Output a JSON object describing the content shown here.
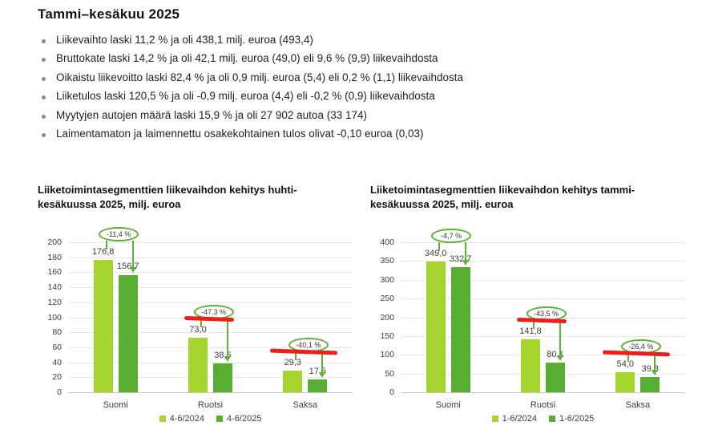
{
  "header": {
    "title": "Tammi–kesäkuu 2025"
  },
  "bullets": [
    "Liikevaihto laski 11,2 % ja oli 438,1 milj. euroa (493,4)",
    "Bruttokate laski 14,2 % ja oli 42,1 milj. euroa (49,0) eli 9,6 % (9,9) liikevaihdosta",
    "Oikaistu liikevoitto laski 82,4 % ja oli 0,9 milj. euroa (5,4) eli 0,2 % (1,1) liikevaihdosta",
    "Liiketulos laski 120,5 % ja oli -0,9 milj. euroa (4,4) eli -0,2 % (0,9) liikevaihdosta",
    "Myytyjen autojen määrä laski 15,9 % ja oli 27 902 autoa (33 174)",
    "Laimentamaton ja laimennettu osakekohtainen tulos olivat -0,10 euroa (0,03)"
  ],
  "colors": {
    "series1": "#a6d42e",
    "series2": "#57ae32",
    "annotation_green": "#5cb231",
    "red_marker": "#e8211d",
    "gridline": "#e6e6e6",
    "text_dark": "#111111",
    "text_label": "#3d3d3d"
  },
  "chart_data": [
    {
      "type": "bar",
      "title_lines": [
        "Liiketoimintasegmenttien liikevaihdon kehitys huhti-",
        "kesäkuussa 2025, milj. euroa"
      ],
      "categories": [
        "Suomi",
        "Ruotsi",
        "Saksa"
      ],
      "series": [
        {
          "name": "4-6/2024",
          "values": [
            176.8,
            73.0,
            29.3
          ],
          "labels": [
            "176,8",
            "73,0",
            "29,3"
          ]
        },
        {
          "name": "4-6/2025",
          "values": [
            156.7,
            38.5,
            17.5
          ],
          "labels": [
            "156,7",
            "38,5",
            "17,5"
          ]
        }
      ],
      "annotations": [
        {
          "category": "Suomi",
          "text": "-11,4 %",
          "red_line": false
        },
        {
          "category": "Ruotsi",
          "text": "-47,3 %",
          "red_line": true
        },
        {
          "category": "Saksa",
          "text": "-40,1 %",
          "red_line": true
        }
      ],
      "ylim": [
        0,
        200
      ],
      "ytick_step": 20,
      "grid": true,
      "legend_position": "bottom"
    },
    {
      "type": "bar",
      "title_lines": [
        "Liiketoimintasegmenttien liikevaihdon kehitys tammi-",
        "kesäkuussa 2025, milj. euroa"
      ],
      "categories": [
        "Suomi",
        "Ruotsi",
        "Saksa"
      ],
      "series": [
        {
          "name": "1-6/2024",
          "values": [
            349.0,
            141.8,
            54.0
          ],
          "labels": [
            "349,0",
            "141,8",
            "54,0"
          ]
        },
        {
          "name": "1-6/2025",
          "values": [
            332.7,
            80.1,
            39.8
          ],
          "labels": [
            "332,7",
            "80,1",
            "39,8"
          ]
        }
      ],
      "annotations": [
        {
          "category": "Suomi",
          "text": "-4,7 %",
          "red_line": false
        },
        {
          "category": "Ruotsi",
          "text": "-43,5 %",
          "red_line": true
        },
        {
          "category": "Saksa",
          "text": "-26,4 %",
          "red_line": true
        }
      ],
      "ylim": [
        0,
        400
      ],
      "ytick_step": 50,
      "grid": true,
      "legend_position": "bottom"
    }
  ]
}
